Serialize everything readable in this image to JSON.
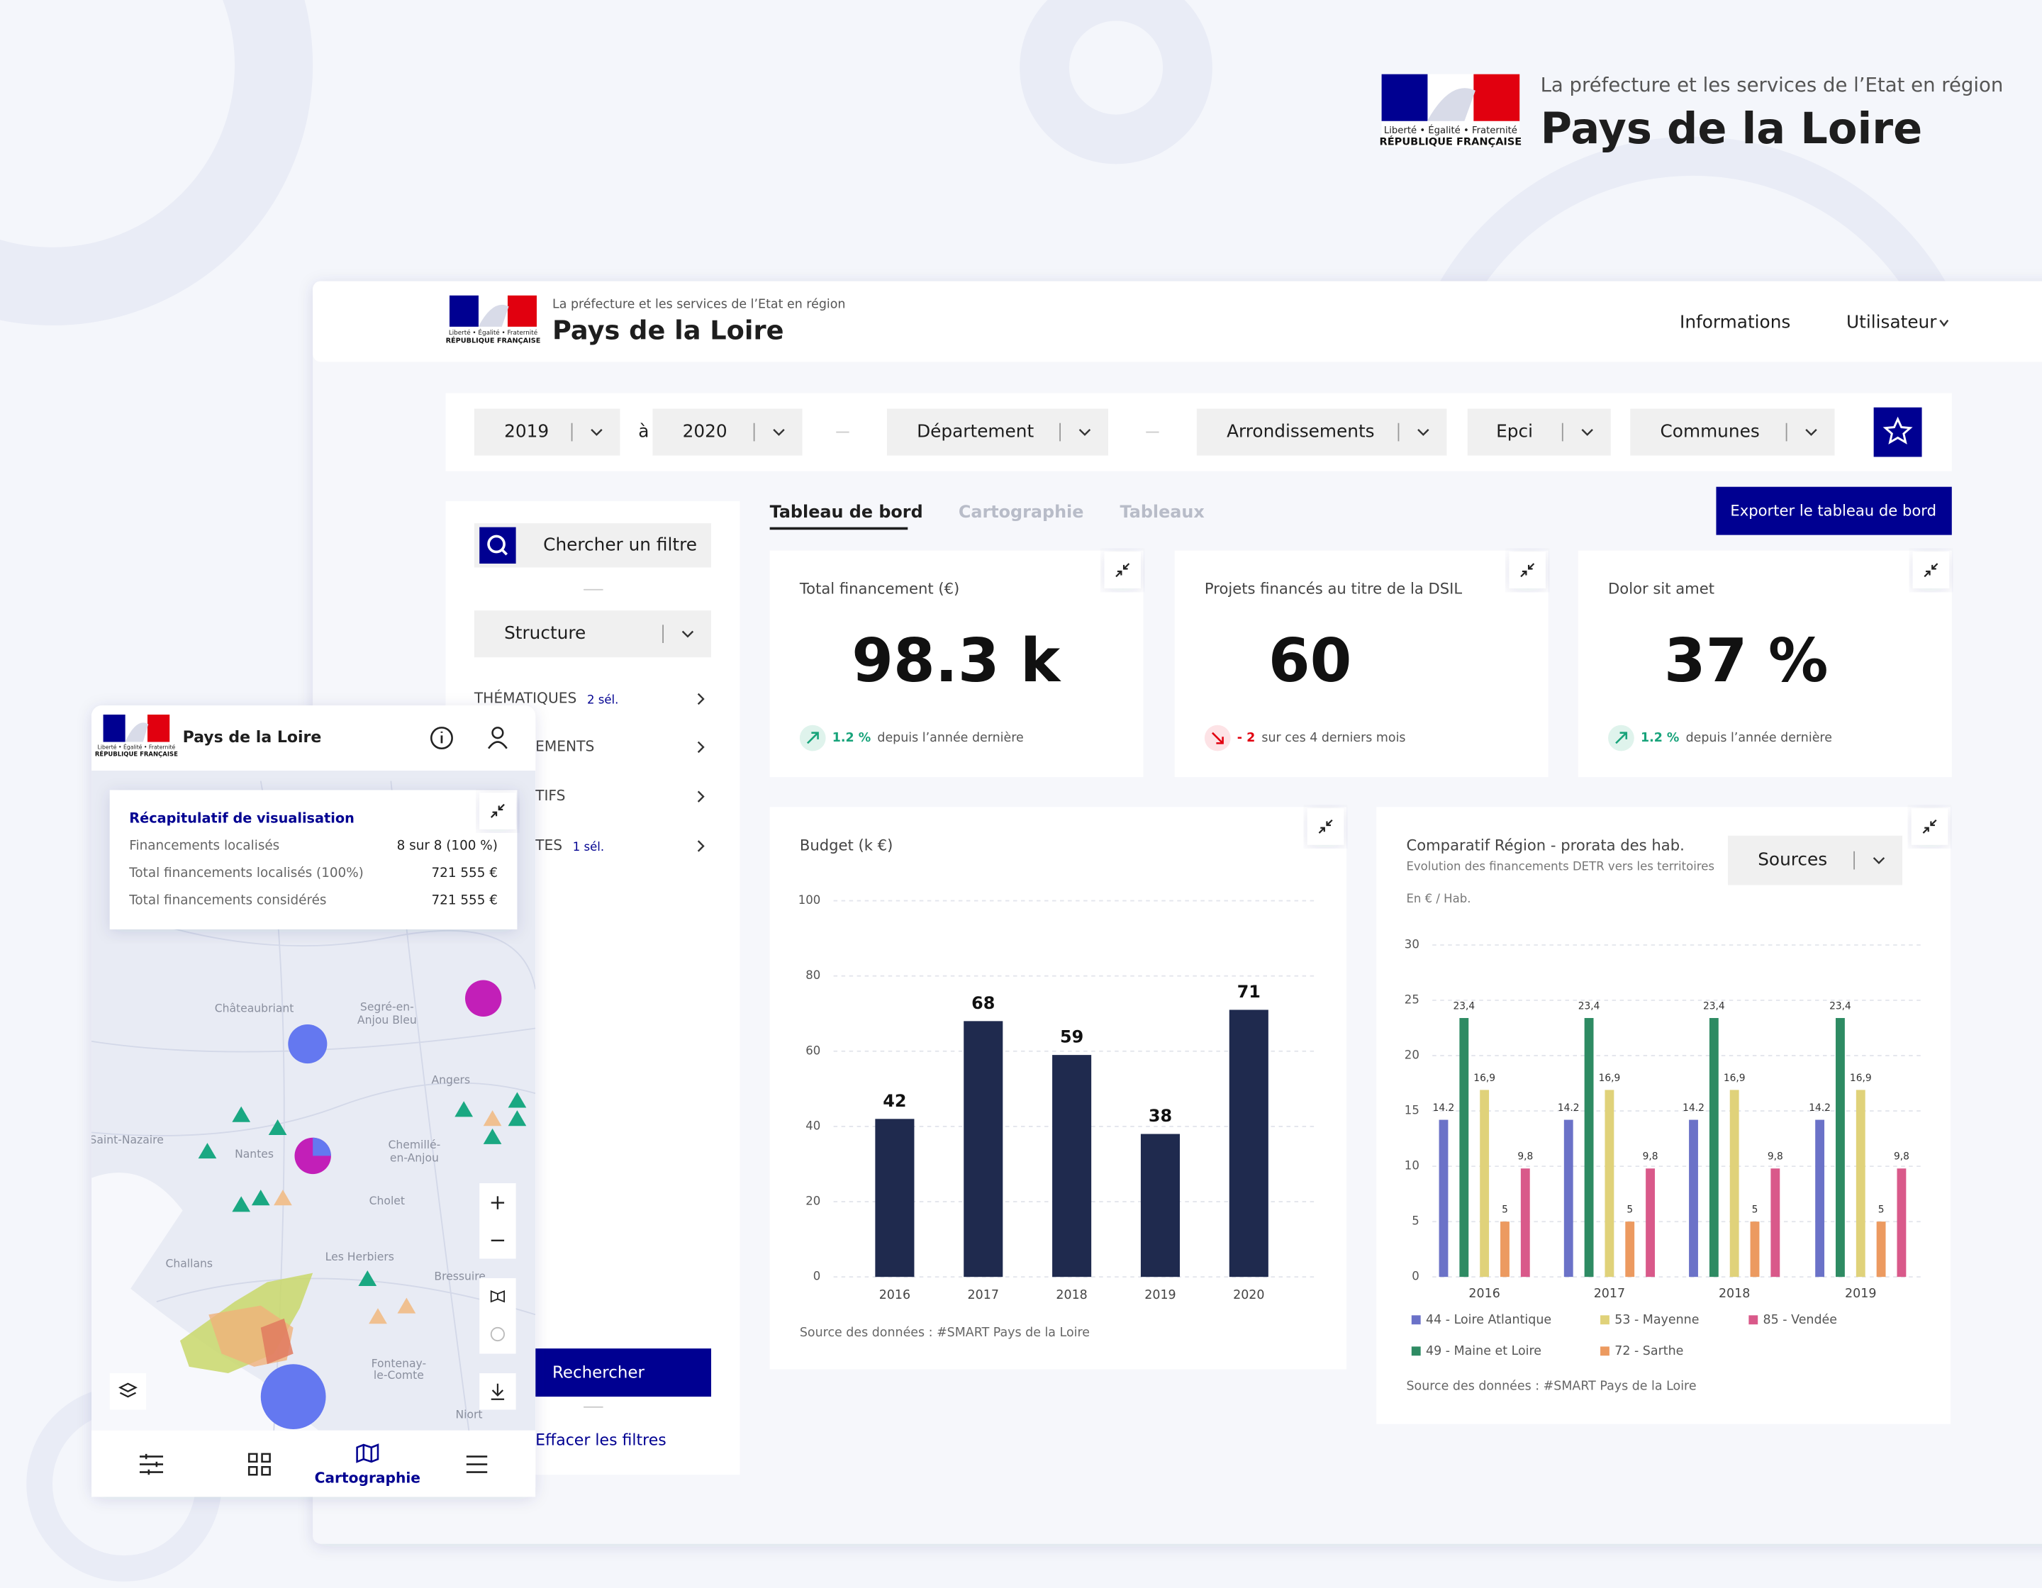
{
  "brand": {
    "tagline": "La préfecture et les services de l’Etat en région",
    "name": "Pays de la Loire",
    "motto": "Liberté • Égalité • Fraternité",
    "republic": "RÉPUBLIQUE FRANÇAISE"
  },
  "nav": [
    "Informations",
    "Utilisateur"
  ],
  "filters": {
    "from": "2019",
    "to_word": "à",
    "to": "2020",
    "selects": [
      "Département",
      "Arrondissements",
      "Epci",
      "Communes"
    ]
  },
  "sidebar": {
    "search": "Chercher un filtre",
    "structure": "Structure",
    "groups": [
      {
        "label": "THÉMATIQUES",
        "count": "2 sél."
      },
      {
        "label": "EMENTS"
      },
      {
        "label": "TIFS"
      },
      {
        "label": "TES",
        "count": "1 sél."
      }
    ],
    "search_button": "Rechercher",
    "clear": "Effacer les filtres"
  },
  "tabs": [
    "Tableau de bord",
    "Cartographie",
    "Tableaux"
  ],
  "export": "Exporter le tableau de bord",
  "kpis": [
    {
      "title": "Total financement (€)",
      "value": "98.3 k",
      "delta": "1.2 %",
      "note": "depuis l’année dernière",
      "trend": "up"
    },
    {
      "title": "Projets financés au titre de la DSIL",
      "value": "60",
      "delta": "- 2",
      "note": "sur ces 4 derniers mois",
      "trend": "down"
    },
    {
      "title": "Dolor sit amet",
      "value": "37 %",
      "delta": "1.2 %",
      "note": "depuis l’année dernière",
      "trend": "up"
    }
  ],
  "chart_data": [
    {
      "type": "bar",
      "title": "Budget (k €)",
      "categories": [
        "2016",
        "2017",
        "2018",
        "2019",
        "2020"
      ],
      "values": [
        42,
        68,
        59,
        38,
        71
      ],
      "color": "#1f2a4e",
      "ylim": [
        0,
        100
      ],
      "yticks": [
        0,
        20,
        40,
        60,
        80,
        100
      ],
      "grid": true,
      "source": "Source des données : #SMART Pays de la Loire"
    },
    {
      "type": "grouped_bar",
      "title": "Comparatif Région - prorata des hab.",
      "subtitle": "Evolution des financements DETR vers les territoires",
      "y_unit": "En € / Hab.",
      "control": "Sources",
      "categories": [
        "2016",
        "2017",
        "2018",
        "2019"
      ],
      "series": [
        {
          "name": "44 - Loire Atlantique",
          "color": "#6b72c8",
          "values": [
            14.2,
            14.2,
            14.2,
            14.2
          ]
        },
        {
          "name": "49 - Maine et Loire",
          "color": "#2e8b63",
          "values": [
            23.4,
            23.4,
            23.4,
            23.4
          ],
          "value_labels": [
            "23,4",
            "23,4",
            "23,4",
            "23,4"
          ]
        },
        {
          "name": "53 - Mayenne",
          "color": "#e0d27a",
          "values": [
            16.9,
            16.9,
            16.9,
            16.9
          ],
          "value_labels": [
            "16,9",
            "16,9",
            "16,9",
            "16,9"
          ]
        },
        {
          "name": "72 - Sarthe",
          "color": "#ec9a60",
          "values": [
            5,
            5,
            5,
            5
          ]
        },
        {
          "name": "85 - Vendée",
          "color": "#d9598a",
          "values": [
            9.8,
            9.8,
            9.8,
            9.8
          ],
          "value_labels": [
            "9,8",
            "9,8",
            "9,8",
            "9,8"
          ]
        }
      ],
      "ylim": [
        0,
        30
      ],
      "yticks": [
        0,
        5,
        10,
        15,
        20,
        25,
        30
      ],
      "grid": true,
      "source": "Source des données : #SMART Pays de la Loire"
    }
  ],
  "mobile": {
    "title": "Pays de la Loire",
    "summary": {
      "title": "Récapitulatif de visualisation",
      "rows": [
        [
          "Financements localisés",
          "8 sur 8 (100 %)"
        ],
        [
          "Total financements localisés (100%)",
          "721 555 €"
        ],
        [
          "Total financements considérés",
          "721 555 €"
        ]
      ]
    },
    "places": [
      "Châteaubriant",
      "Segré-en-",
      "Anjou Bleu",
      "Angers",
      "Nantes",
      "Saint-Nazaire",
      "Chemillé-",
      "en-Anjou",
      "Cholet",
      "Challans",
      "Les Herbiers",
      "Bressuire",
      "Fontenay-",
      "le-Comte",
      "Niort"
    ],
    "nav_label": "Cartographie"
  }
}
